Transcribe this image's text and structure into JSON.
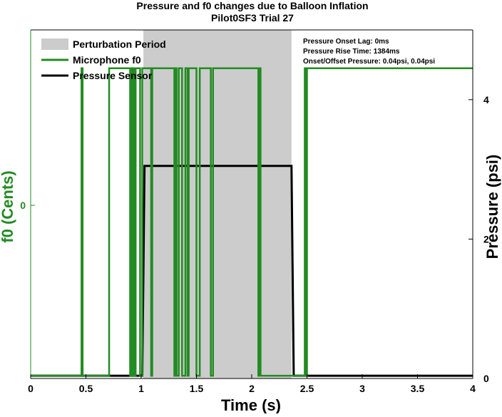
{
  "chart_data": {
    "type": "line",
    "title": "Pressure and f0 changes due to Balloon Inflation",
    "subtitle": "Pilot0SF3 Trial 27",
    "xlabel": "Time (s)",
    "ylabel_left": "f0 (Cents)",
    "ylabel_right": "Pressure (psi)",
    "xlim": [
      0,
      4
    ],
    "ylim_right": [
      0,
      5
    ],
    "x_ticks": [
      "0",
      "0.5",
      "1",
      "1.5",
      "2",
      "2.5",
      "3",
      "3.5",
      "4"
    ],
    "left_ticks": [
      "0"
    ],
    "right_ticks": [
      "0",
      "2",
      "4"
    ],
    "colors": {
      "perturbation": "#cccccc",
      "microphone": "#228b22",
      "pressure": "#000000",
      "left_axis": "#228b22",
      "right_axis": "#000000"
    },
    "legend": {
      "placement": "top-left",
      "items": [
        {
          "label": "Perturbation Period",
          "kind": "patch",
          "color": "#cccccc"
        },
        {
          "label": "Microphone f0",
          "kind": "line",
          "color": "#228b22"
        },
        {
          "label": "Pressure Sensor",
          "kind": "line",
          "color": "#000000"
        }
      ]
    },
    "annotations": [
      "Pressure Onset Lag: 0ms",
      "Pressure Rise Time: 1384ms",
      "Onset/Offset Pressure: 0.04psi, 0.04psi"
    ],
    "series": [
      {
        "name": "Perturbation Period",
        "kind": "span",
        "x": [
          1.02,
          2.36
        ]
      },
      {
        "name": "Pressure Sensor",
        "kind": "line",
        "axis": "right",
        "x": [
          0,
          1.01,
          1.03,
          2.36,
          2.38,
          4.0
        ],
        "y": [
          0.04,
          0.04,
          3.05,
          3.05,
          0.04,
          0.04
        ]
      },
      {
        "name": "Microphone f0",
        "kind": "step",
        "axis": "right",
        "x": [
          0,
          0.45,
          0.46,
          0.47,
          0.7,
          0.71,
          0.89,
          0.9,
          0.91,
          0.92,
          0.93,
          0.94,
          0.95,
          0.97,
          0.99,
          1.01,
          1.08,
          1.09,
          1.1,
          1.12,
          1.3,
          1.31,
          1.32,
          1.34,
          1.36,
          1.37,
          1.4,
          1.42,
          1.43,
          1.45,
          1.5,
          1.53,
          1.6,
          1.63,
          1.65,
          1.66,
          2.06,
          2.07,
          2.08,
          2.47,
          2.48,
          2.49,
          2.5,
          4.0
        ],
        "y": [
          0.04,
          0.04,
          4.45,
          0.04,
          0.04,
          4.45,
          4.45,
          0.04,
          4.45,
          0.04,
          4.45,
          0.04,
          4.45,
          4.45,
          0.04,
          4.45,
          4.45,
          0.04,
          4.45,
          4.45,
          0.04,
          4.45,
          0.04,
          4.45,
          4.45,
          0.04,
          4.45,
          0.04,
          4.45,
          4.45,
          0.04,
          4.45,
          4.45,
          0.04,
          4.45,
          4.45,
          0.04,
          4.45,
          0.04,
          0.04,
          4.45,
          0.04,
          4.45,
          4.45
        ]
      }
    ]
  }
}
